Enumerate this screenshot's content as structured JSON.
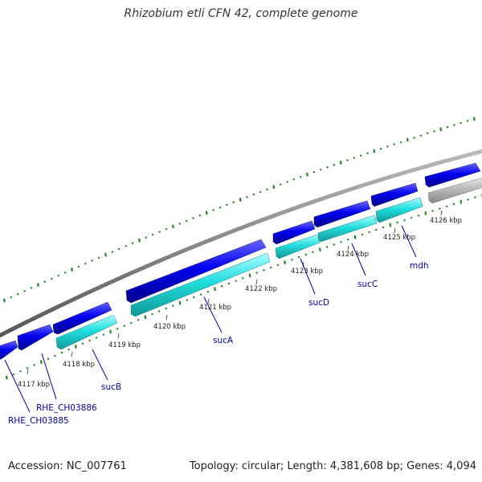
{
  "title": "Rhizobium etli CFN 42, complete genome",
  "footer": {
    "accession": "Accession: NC_007761",
    "summary": "Topology: circular; Length: 4,381,608 bp; Genes: 4,094"
  },
  "colors": {
    "forward_gene": "#0000ee",
    "reverse_gene": "#22dddd",
    "other_gene": "#bbbbbb",
    "backbone": "#888888",
    "ticks": "#228822",
    "gene_label": "#0000aa"
  },
  "scale_labels": [
    "4117 kbp",
    "4118 kbp",
    "4119 kbp",
    "4120 kbp",
    "4121 kbp",
    "4122 kbp",
    "4123 kbp",
    "4124 kbp",
    "4125 kbp",
    "4126 kbp"
  ],
  "gene_labels": [
    "RHE_CH03885",
    "RHE_CH03886",
    "sucB",
    "sucA",
    "sucD",
    "sucC",
    "mdh"
  ]
}
